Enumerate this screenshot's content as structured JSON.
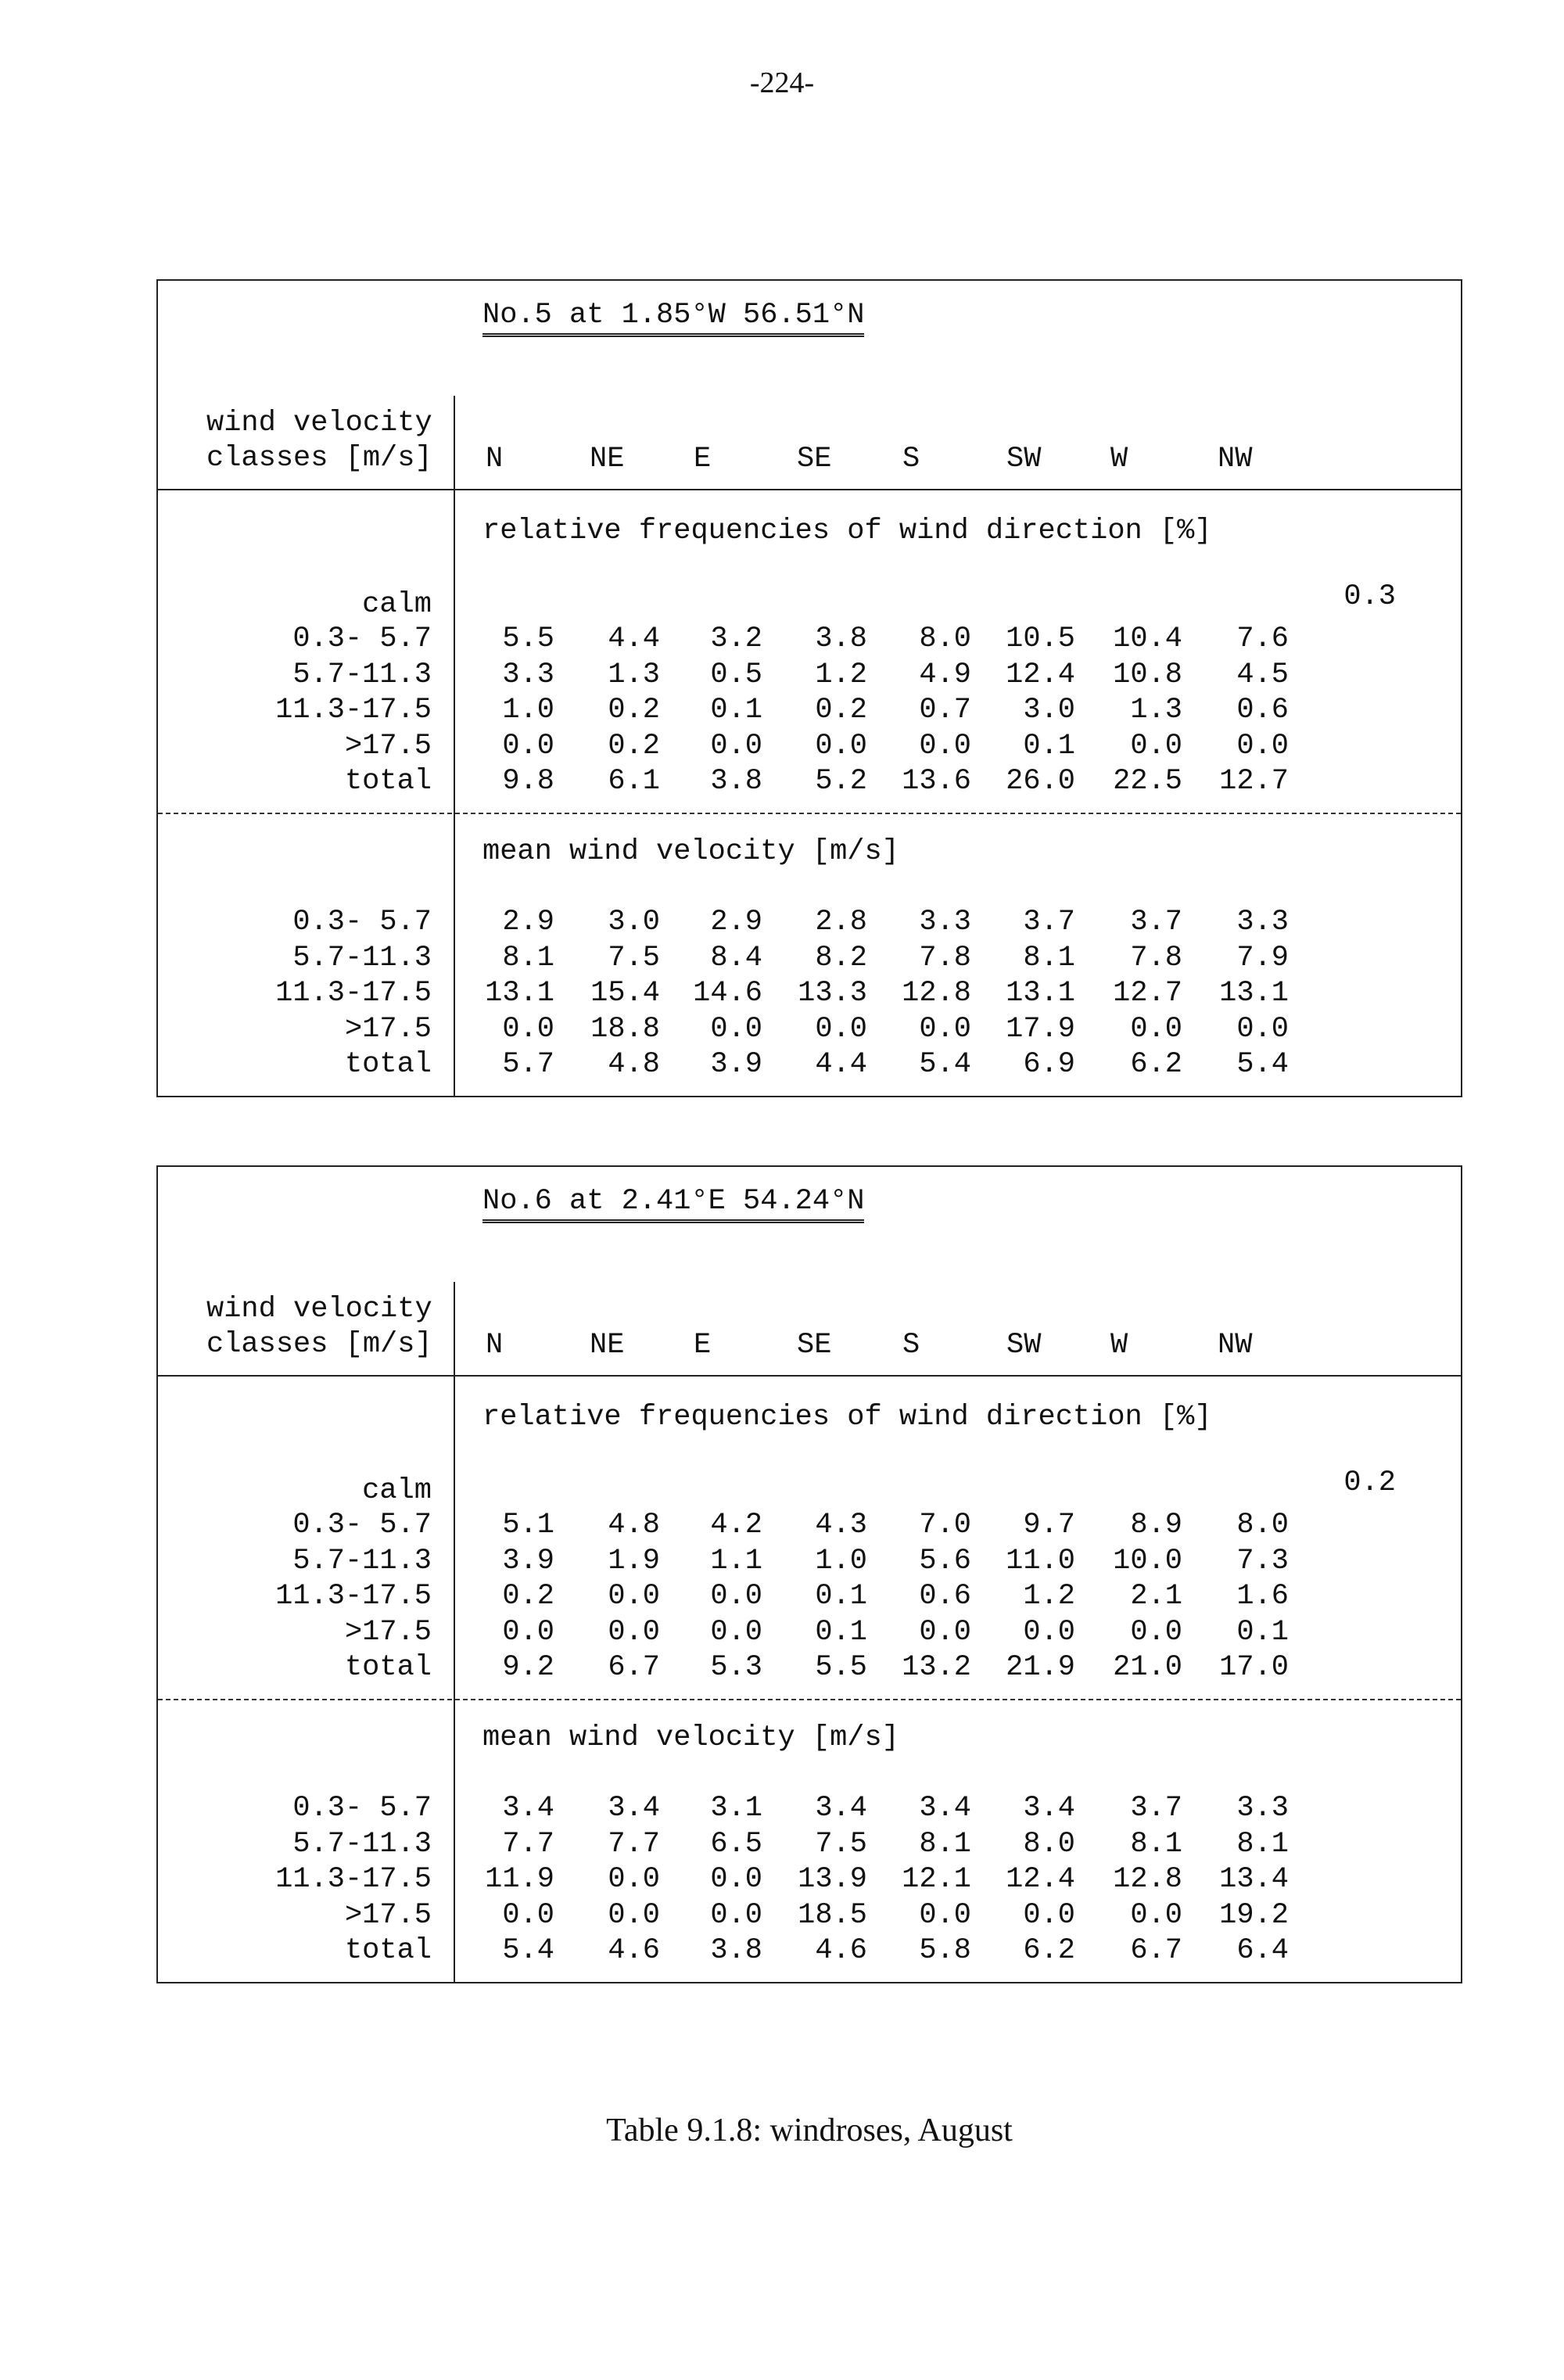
{
  "page_number": "-224-",
  "caption": "Table 9.1.8: windroses, August",
  "stub_header": [
    "wind velocity",
    "classes [m/s]"
  ],
  "directions": [
    "N",
    "NE",
    "E",
    "SE",
    "S",
    "SW",
    "W",
    "NW"
  ],
  "freq_section_label": "relative frequencies of wind direction [%]",
  "mean_section_label": "mean wind velocity [m/s]",
  "calm_label": "calm",
  "row_labels": [
    "0.3- 5.7",
    "5.7-11.3",
    "11.3-17.5",
    ">17.5",
    "total"
  ],
  "tables": [
    {
      "title": "No.5 at 1.85°W 56.51°N",
      "calm": "0.3",
      "frequencies": [
        [
          "5.5",
          "4.4",
          "3.2",
          "3.8",
          "8.0",
          "10.5",
          "10.4",
          "7.6"
        ],
        [
          "3.3",
          "1.3",
          "0.5",
          "1.2",
          "4.9",
          "12.4",
          "10.8",
          "4.5"
        ],
        [
          "1.0",
          "0.2",
          "0.1",
          "0.2",
          "0.7",
          "3.0",
          "1.3",
          "0.6"
        ],
        [
          "0.0",
          "0.2",
          "0.0",
          "0.0",
          "0.0",
          "0.1",
          "0.0",
          "0.0"
        ],
        [
          "9.8",
          "6.1",
          "3.8",
          "5.2",
          "13.6",
          "26.0",
          "22.5",
          "12.7"
        ]
      ],
      "mean_velocity": [
        [
          "2.9",
          "3.0",
          "2.9",
          "2.8",
          "3.3",
          "3.7",
          "3.7",
          "3.3"
        ],
        [
          "8.1",
          "7.5",
          "8.4",
          "8.2",
          "7.8",
          "8.1",
          "7.8",
          "7.9"
        ],
        [
          "13.1",
          "15.4",
          "14.6",
          "13.3",
          "12.8",
          "13.1",
          "12.7",
          "13.1"
        ],
        [
          "0.0",
          "18.8",
          "0.0",
          "0.0",
          "0.0",
          "17.9",
          "0.0",
          "0.0"
        ],
        [
          "5.7",
          "4.8",
          "3.9",
          "4.4",
          "5.4",
          "6.9",
          "6.2",
          "5.4"
        ]
      ]
    },
    {
      "title": "No.6 at 2.41°E 54.24°N",
      "calm": "0.2",
      "frequencies": [
        [
          "5.1",
          "4.8",
          "4.2",
          "4.3",
          "7.0",
          "9.7",
          "8.9",
          "8.0"
        ],
        [
          "3.9",
          "1.9",
          "1.1",
          "1.0",
          "5.6",
          "11.0",
          "10.0",
          "7.3"
        ],
        [
          "0.2",
          "0.0",
          "0.0",
          "0.1",
          "0.6",
          "1.2",
          "2.1",
          "1.6"
        ],
        [
          "0.0",
          "0.0",
          "0.0",
          "0.1",
          "0.0",
          "0.0",
          "0.0",
          "0.1"
        ],
        [
          "9.2",
          "6.7",
          "5.3",
          "5.5",
          "13.2",
          "21.9",
          "21.0",
          "17.0"
        ]
      ],
      "mean_velocity": [
        [
          "3.4",
          "3.4",
          "3.1",
          "3.4",
          "3.4",
          "3.4",
          "3.7",
          "3.3"
        ],
        [
          "7.7",
          "7.7",
          "6.5",
          "7.5",
          "8.1",
          "8.0",
          "8.1",
          "8.1"
        ],
        [
          "11.9",
          "0.0",
          "0.0",
          "13.9",
          "12.1",
          "12.4",
          "12.8",
          "13.4"
        ],
        [
          "0.0",
          "0.0",
          "0.0",
          "18.5",
          "0.0",
          "0.0",
          "0.0",
          "19.2"
        ],
        [
          "5.4",
          "4.6",
          "3.8",
          "4.6",
          "5.8",
          "6.2",
          "6.7",
          "6.4"
        ]
      ]
    }
  ]
}
